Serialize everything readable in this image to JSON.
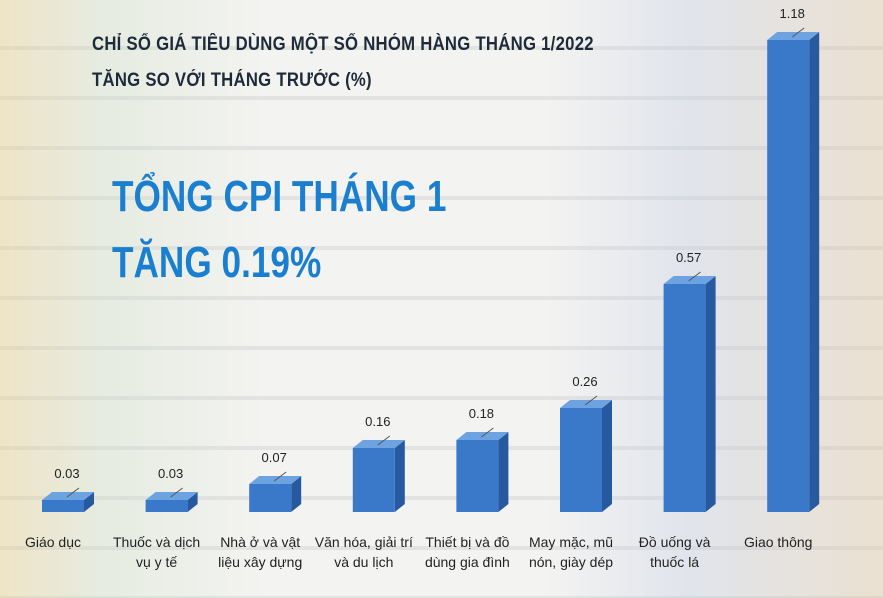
{
  "chart_data": {
    "type": "bar3d",
    "title": "CHỈ SỐ GIÁ TIÊU DÙNG MỘT SỐ NHÓM HÀNG THÁNG 1/2022",
    "subtitle": "TĂNG SO VỚI THÁNG TRƯỚC (%)",
    "annotations": [
      "TỔNG CPI THÁNG 1",
      "TĂNG 0.19%"
    ],
    "categories": [
      "Giáo dục",
      "Thuốc và dịch vụ y tế",
      "Nhà ở và vật liệu xây dựng",
      "Văn hóa, giải trí và du lịch",
      "Thiết bị và đồ dùng gia đình",
      "May mặc, mũ nón, giày dép",
      "Đồ uống và thuốc lá",
      "Giao thông"
    ],
    "values": [
      0.03,
      0.03,
      0.07,
      0.16,
      0.18,
      0.26,
      0.57,
      1.18
    ],
    "color": "#3a78c9"
  }
}
